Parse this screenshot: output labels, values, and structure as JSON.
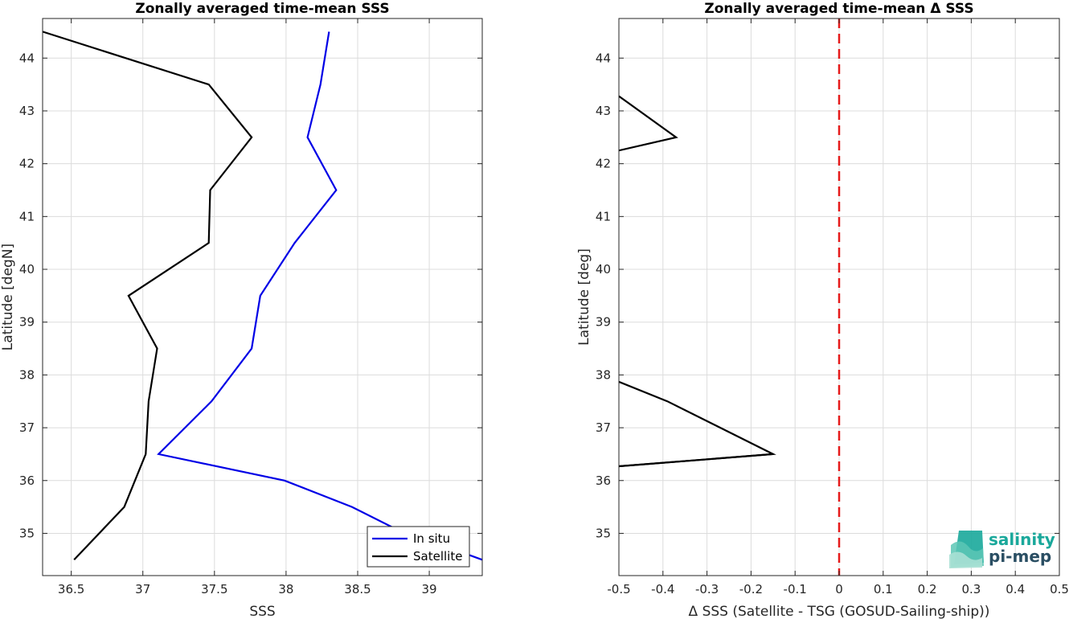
{
  "chart_data": [
    {
      "type": "line",
      "title": "Zonally averaged time-mean SSS",
      "xlabel": "SSS",
      "ylabel": "Latitude [degN]",
      "xlim": [
        36.3,
        39.37
      ],
      "ylim": [
        34.2,
        44.75
      ],
      "xticks": [
        36.5,
        37,
        37.5,
        38,
        38.5,
        39
      ],
      "xtick_labels": [
        "36.5",
        "37",
        "37.5",
        "38",
        "38.5",
        "39"
      ],
      "yticks": [
        35,
        36,
        37,
        38,
        39,
        40,
        41,
        42,
        43,
        44
      ],
      "ytick_labels": [
        "35",
        "36",
        "37",
        "38",
        "39",
        "40",
        "41",
        "42",
        "43",
        "44"
      ],
      "grid": true,
      "legend": "bottom-right",
      "series": [
        {
          "name": "In situ",
          "color": "#0000e6",
          "x": [
            39.37,
            38.74,
            38.46,
            37.99,
            37.11,
            37.48,
            37.76,
            37.82,
            38.06,
            38.35,
            38.15,
            38.24,
            38.3
          ],
          "y": [
            34.5,
            35.12,
            35.5,
            36.0,
            36.5,
            37.5,
            38.5,
            39.5,
            40.5,
            41.5,
            42.5,
            43.5,
            44.5
          ]
        },
        {
          "name": "Satellite",
          "color": "#000000",
          "x": [
            36.52,
            36.87,
            37.02,
            37.04,
            37.1,
            36.9,
            37.46,
            37.47,
            37.76,
            37.46,
            36.3
          ],
          "y": [
            34.5,
            35.5,
            36.5,
            37.5,
            38.5,
            39.5,
            40.5,
            41.5,
            42.5,
            43.5,
            44.5
          ]
        }
      ]
    },
    {
      "type": "line",
      "title": "Zonally averaged time-mean Δ SSS",
      "xlabel": "Δ SSS (Satellite - TSG (GOSUD-Sailing-ship))",
      "ylabel": "Latitude [deg]",
      "xlim": [
        -0.5,
        0.5
      ],
      "ylim": [
        34.2,
        44.75
      ],
      "xticks": [
        -0.5,
        -0.4,
        -0.3,
        -0.2,
        -0.1,
        0,
        0.1,
        0.2,
        0.3,
        0.4,
        0.5
      ],
      "xtick_labels": [
        "-0.5",
        "-0.4",
        "-0.3",
        "-0.2",
        "-0.1",
        "0",
        "0.1",
        "0.2",
        "0.3",
        "0.4",
        "0.5"
      ],
      "yticks": [
        35,
        36,
        37,
        38,
        39,
        40,
        41,
        42,
        43,
        44
      ],
      "ytick_labels": [
        "35",
        "36",
        "37",
        "38",
        "39",
        "40",
        "41",
        "42",
        "43",
        "44"
      ],
      "grid": true,
      "reference_line": {
        "x": 0,
        "color": "#e61a1a",
        "style": "dashed"
      },
      "series": [
        {
          "color": "#000000",
          "segments": [
            {
              "x": [
                -0.5,
                -0.15,
                -0.5
              ],
              "y": [
                36.27,
                36.5,
                36.27
              ]
            },
            {
              "x": [
                -0.5,
                -0.15,
                -0.39,
                -0.5
              ],
              "y": [
                36.27,
                36.5,
                37.5,
                37.87
              ]
            },
            {
              "x": [
                -0.5,
                -0.37,
                -0.5
              ],
              "y": [
                42.25,
                42.5,
                43.28
              ]
            }
          ]
        }
      ]
    }
  ],
  "logo": {
    "line1": "salinity",
    "line2": "pi-mep"
  }
}
